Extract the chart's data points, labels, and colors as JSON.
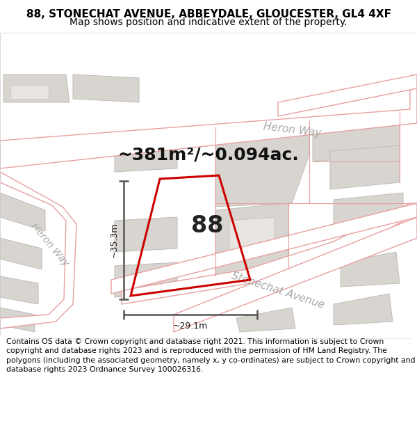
{
  "title": "88, STONECHAT AVENUE, ABBEYDALE, GLOUCESTER, GL4 4XF",
  "subtitle": "Map shows position and indicative extent of the property.",
  "area_text": "~381m²/~0.094ac.",
  "dim_width": "~29.1m",
  "dim_height": "~35.3m",
  "property_number": "88",
  "footer": "Contains OS data © Crown copyright and database right 2021. This information is subject to Crown copyright and database rights 2023 and is reproduced with the permission of HM Land Registry. The polygons (including the associated geometry, namely x, y co-ordinates) are subject to Crown copyright and database rights 2023 Ordnance Survey 100026316.",
  "map_bg_color": "#f7f5f2",
  "road_stroke_color": "#e8a0a0",
  "road_fill_color": "#ffffff",
  "plot_outline_color": "#cc0000",
  "dim_line_color": "#555555",
  "building_fill": "#d8d5d0",
  "building_stroke": "#c0bcb8",
  "road_boundary_color": "#c8b8b0",
  "title_fontsize": 11,
  "subtitle_fontsize": 10,
  "area_fontsize": 18,
  "number_fontsize": 24,
  "footer_fontsize": 7.8,
  "road_label_color": "#aaaaaa",
  "road_label_fontsize": 11,
  "heron_way_label_upper": "Heron Way",
  "heron_way_label_left": "Heron Way",
  "stonechat_label": "Stonechat Avenue"
}
